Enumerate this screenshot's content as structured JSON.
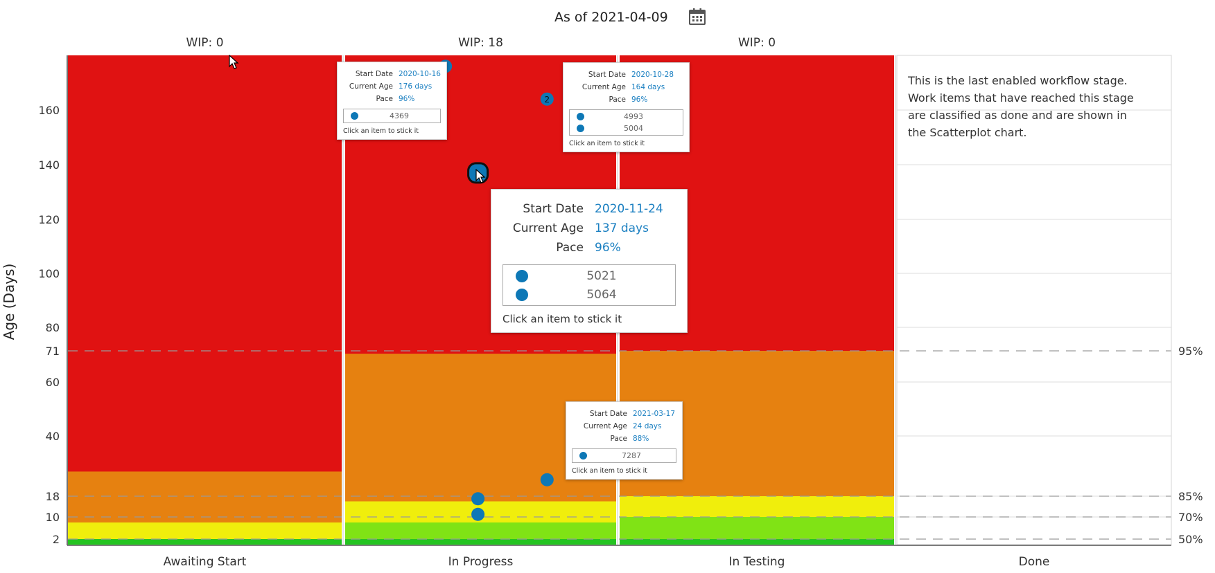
{
  "header": {
    "as_of": "As of 2021-04-09",
    "icon": "calendar-icon"
  },
  "chart_data": {
    "type": "scatter",
    "title": "As of 2021-04-09",
    "ylabel": "Age (Days)",
    "ylim": [
      0,
      180
    ],
    "y_ticks": [
      2,
      10,
      18,
      40,
      60,
      71,
      80,
      100,
      120,
      140,
      160
    ],
    "percentile_lines": [
      {
        "value": 2,
        "label": "50%"
      },
      {
        "value": 10,
        "label": "70%"
      },
      {
        "value": 18,
        "label": "85%"
      },
      {
        "value": 71,
        "label": "95%"
      }
    ],
    "columns": [
      {
        "name": "Awaiting Start",
        "wip": "WIP: 0",
        "bands": {
          "green": 2,
          "yellow": 8,
          "orange": 27
        }
      },
      {
        "name": "In Progress",
        "wip": "WIP: 18",
        "bands": {
          "green": 2,
          "lightgreen": 8,
          "yellow": 16,
          "orange": 70
        }
      },
      {
        "name": "In Testing",
        "wip": "WIP: 0",
        "bands": {
          "green": 2,
          "lightgreen": 10,
          "yellow": 18,
          "orange": 71
        }
      },
      {
        "name": "Done",
        "wip": ""
      }
    ],
    "points": [
      {
        "column": "In Progress",
        "slot": 0.37,
        "age": 176
      },
      {
        "column": "In Progress",
        "slot": 0.745,
        "age": 164,
        "count": "2"
      },
      {
        "column": "In Progress",
        "slot": 0.49,
        "age": 137,
        "highlight": true
      },
      {
        "column": "In Progress",
        "slot": 0.745,
        "age": 24
      },
      {
        "column": "In Progress",
        "slot": 0.49,
        "age": 17
      },
      {
        "column": "In Progress",
        "slot": 0.49,
        "age": 11
      }
    ],
    "colors": {
      "red": "#e01212",
      "orange": "#e68110",
      "yellow": "#f0ee0c",
      "lightgreen": "#80e315",
      "green": "#24c421",
      "point": "#0e78b6"
    },
    "grid": true
  },
  "done_note": "This is the last enabled workflow stage. Work items that have reached this stage are classified as done and are shown in the Scatterplot chart.",
  "tooltips": [
    {
      "id": "tip1",
      "start_label": "Start Date",
      "start": "2020-10-16",
      "age_label": "Current Age",
      "age": "176 days",
      "pace_label": "Pace",
      "pace": "96%",
      "items": [
        "4369"
      ],
      "hint": "Click an item to stick it"
    },
    {
      "id": "tip2",
      "start_label": "Start Date",
      "start": "2020-10-28",
      "age_label": "Current Age",
      "age": "164 days",
      "pace_label": "Pace",
      "pace": "96%",
      "items": [
        "4993",
        "5004"
      ],
      "hint": "Click an item to stick it"
    },
    {
      "id": "tip3",
      "start_label": "Start Date",
      "start": "2020-11-24",
      "age_label": "Current Age",
      "age": "137 days",
      "pace_label": "Pace",
      "pace": "96%",
      "items": [
        "5021",
        "5064"
      ],
      "hint": "Click an item to stick it"
    },
    {
      "id": "tip4",
      "start_label": "Start Date",
      "start": "2021-03-17",
      "age_label": "Current Age",
      "age": "24 days",
      "pace_label": "Pace",
      "pace": "88%",
      "items": [
        "7287"
      ],
      "hint": "Click an item to stick it"
    }
  ]
}
